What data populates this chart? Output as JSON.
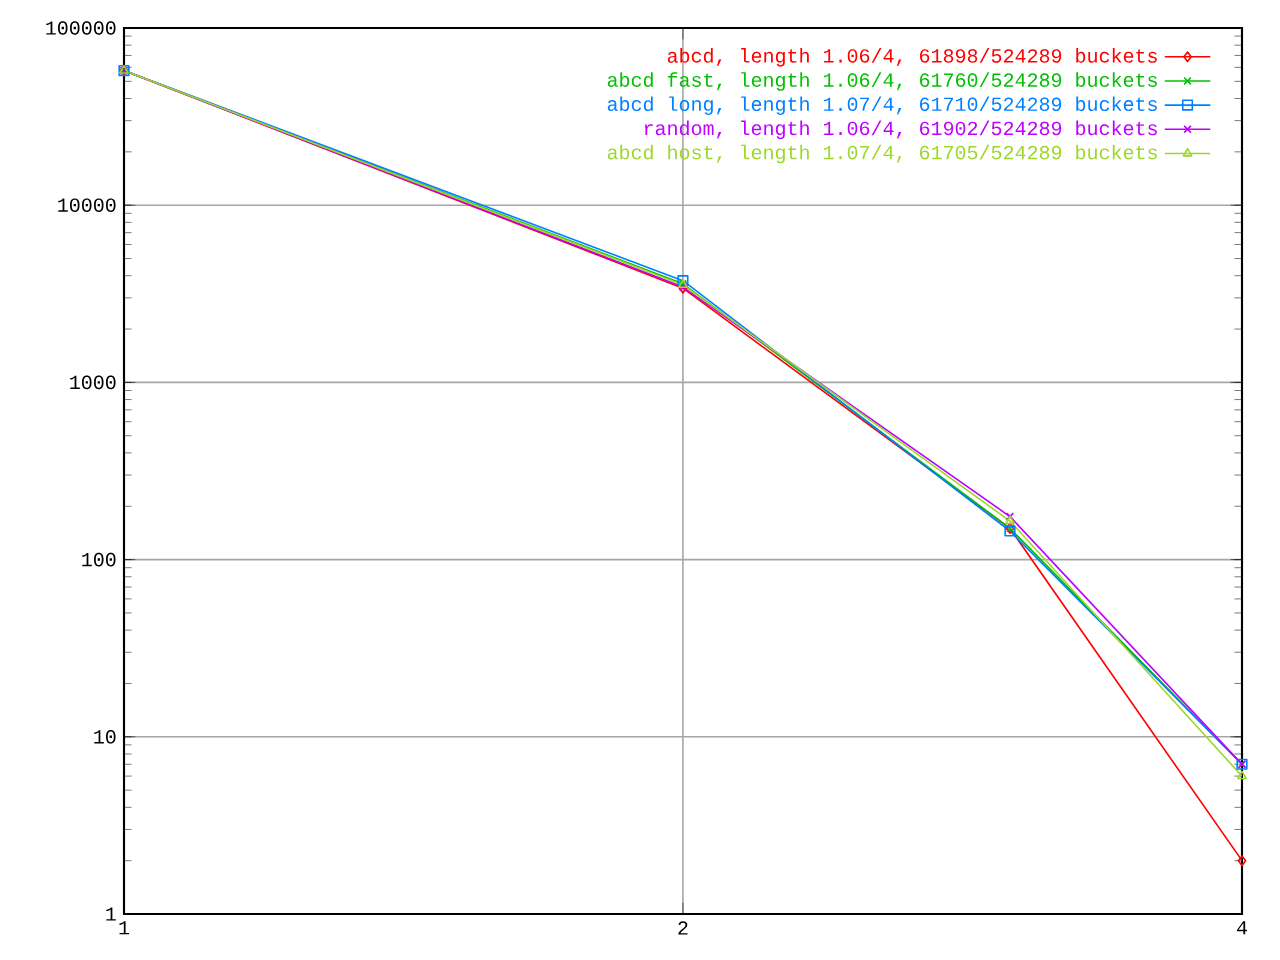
{
  "chart_data": {
    "type": "line",
    "x": [
      1,
      2,
      3,
      4
    ],
    "log": "xy",
    "xlim": [
      1,
      4
    ],
    "xticks": [
      1,
      2,
      4
    ],
    "ylim": [
      1,
      100000
    ],
    "yticks": [
      1,
      10,
      100,
      1000,
      10000,
      100000
    ],
    "grid": true,
    "legend": "top right",
    "series": [
      {
        "name": "abcd, length 1.06/4, 61898/524289 buckets",
        "color": "#ff0000",
        "marker": "diamond",
        "values": [
          57500,
          3400,
          150,
          2
        ]
      },
      {
        "name": "abcd fast, length 1.06/4, 61760/524289 buckets",
        "color": "#00c000",
        "marker": "cross",
        "values": [
          57500,
          3600,
          150,
          7
        ]
      },
      {
        "name": "abcd long, length 1.07/4, 61710/524289 buckets",
        "color": "#0080ff",
        "marker": "square",
        "values": [
          57500,
          3750,
          145,
          7
        ]
      },
      {
        "name": "random, length 1.06/4, 61902/524289 buckets",
        "color": "#c000ff",
        "marker": "cross",
        "values": [
          57500,
          3450,
          175,
          7
        ]
      },
      {
        "name": "abcd host, length 1.07/4, 61705/524289 buckets",
        "color": "#9cd82a",
        "marker": "triangle",
        "values": [
          57500,
          3550,
          165,
          6
        ]
      }
    ]
  }
}
